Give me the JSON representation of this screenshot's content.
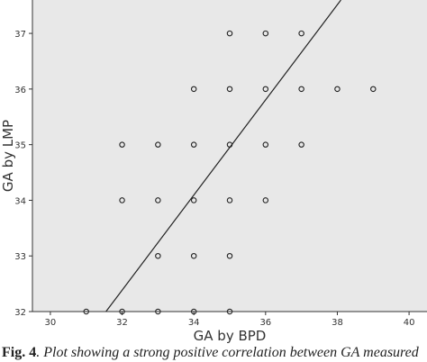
{
  "caption": {
    "label": "Fig. 4",
    "text": ". Plot showing a strong positive correlation between GA measured"
  },
  "chart_data": {
    "type": "scatter",
    "xlabel": "GA by BPD",
    "ylabel": "GA by LMP",
    "xlim": [
      29.5,
      40.5
    ],
    "ylim": [
      32,
      37.6
    ],
    "x_ticks": [
      30,
      32,
      34,
      36,
      38,
      40
    ],
    "y_ticks": [
      32,
      33,
      34,
      35,
      36,
      37
    ],
    "grid": false,
    "background": "#e8e8e8",
    "marker_color": "#222222",
    "points": [
      {
        "x": 31,
        "y": 32
      },
      {
        "x": 32,
        "y": 32
      },
      {
        "x": 33,
        "y": 32
      },
      {
        "x": 34,
        "y": 32
      },
      {
        "x": 35,
        "y": 32
      },
      {
        "x": 33,
        "y": 33
      },
      {
        "x": 34,
        "y": 33
      },
      {
        "x": 35,
        "y": 33
      },
      {
        "x": 32,
        "y": 34
      },
      {
        "x": 33,
        "y": 34
      },
      {
        "x": 34,
        "y": 34
      },
      {
        "x": 35,
        "y": 34
      },
      {
        "x": 36,
        "y": 34
      },
      {
        "x": 32,
        "y": 35
      },
      {
        "x": 33,
        "y": 35
      },
      {
        "x": 34,
        "y": 35
      },
      {
        "x": 35,
        "y": 35
      },
      {
        "x": 36,
        "y": 35
      },
      {
        "x": 37,
        "y": 35
      },
      {
        "x": 34,
        "y": 36
      },
      {
        "x": 35,
        "y": 36
      },
      {
        "x": 36,
        "y": 36
      },
      {
        "x": 37,
        "y": 36
      },
      {
        "x": 38,
        "y": 36
      },
      {
        "x": 39,
        "y": 36
      },
      {
        "x": 35,
        "y": 37
      },
      {
        "x": 36,
        "y": 37
      },
      {
        "x": 37,
        "y": 37
      }
    ],
    "fit_line": {
      "x1": 31.55,
      "y1": 32,
      "x2": 38.1,
      "y2": 37.6
    }
  }
}
